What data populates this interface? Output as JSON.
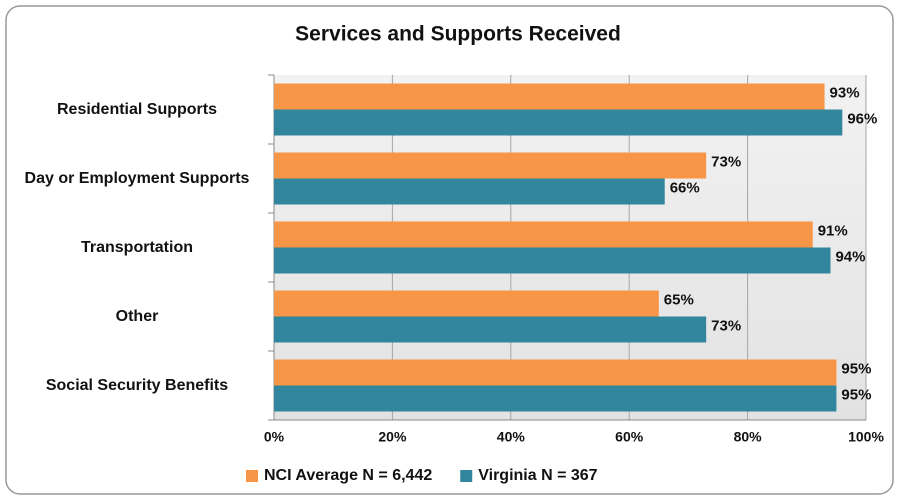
{
  "chart_data": {
    "type": "hbar",
    "title": "Services and Supports Received",
    "categories": [
      "Residential Supports",
      "Day or Employment Supports",
      "Transportation",
      "Other",
      "Social Security Benefits"
    ],
    "series": [
      {
        "name": "NCI Average N = 6,442",
        "color": "#f79646",
        "values": [
          93,
          73,
          91,
          65,
          95
        ],
        "value_labels": [
          "93%",
          "73%",
          "91%",
          "65%",
          "95%"
        ]
      },
      {
        "name": "Virginia N = 367",
        "color": "#31859c",
        "values": [
          96,
          66,
          94,
          73,
          95
        ],
        "value_labels": [
          "96%",
          "66%",
          "94%",
          "73%",
          "95%"
        ]
      }
    ],
    "xlim": [
      0,
      100
    ],
    "xticks": [
      {
        "value": 0,
        "label": "0%"
      },
      {
        "value": 20,
        "label": "20%"
      },
      {
        "value": 40,
        "label": "40%"
      },
      {
        "value": 60,
        "label": "60%"
      },
      {
        "value": 80,
        "label": "80%"
      },
      {
        "value": 100,
        "label": "100%"
      }
    ],
    "grid": true,
    "legend": "bottom"
  }
}
